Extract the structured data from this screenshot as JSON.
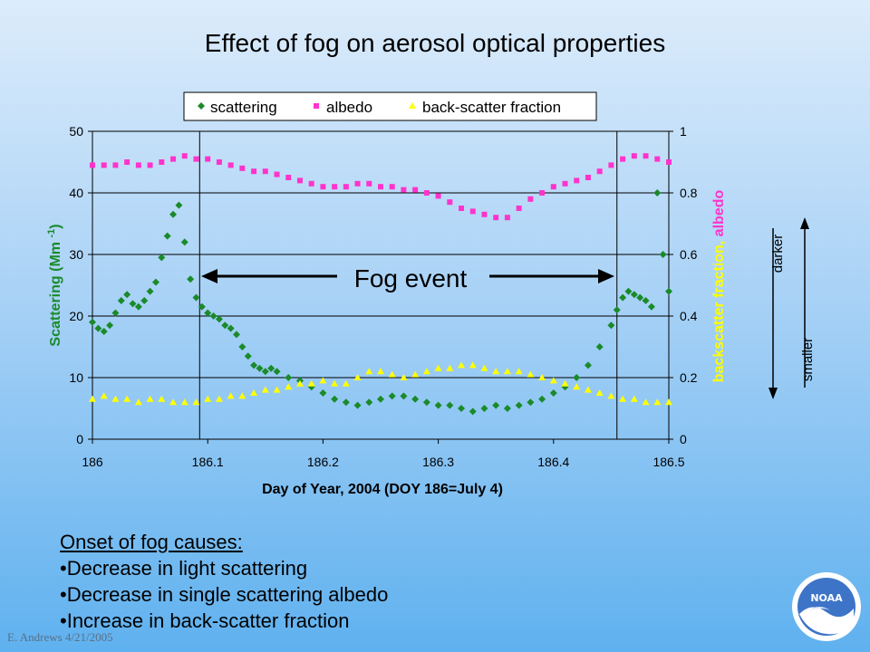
{
  "title": "Effect of fog on aerosol optical properties",
  "legend": {
    "items": [
      {
        "label": "scattering",
        "marker": "diamond",
        "color": "#1a8a2a"
      },
      {
        "label": "albedo",
        "marker": "square",
        "color": "#ff33cc"
      },
      {
        "label": "back-scatter fraction",
        "marker": "triangle",
        "color": "#ffff00"
      }
    ]
  },
  "annotations": {
    "fog_event": "Fog event",
    "darker": "darker",
    "smaller": "smaller"
  },
  "bullets": {
    "heading": "Onset of fog causes:",
    "items": [
      "•Decrease in light scattering",
      "•Decrease in single scattering albedo",
      "•Increase in back-scatter fraction"
    ]
  },
  "credit": "E. Andrews  4/21/2005",
  "logo_text": "NOAA",
  "colors": {
    "scattering": "#1a8a2a",
    "albedo": "#ff33cc",
    "backscatter": "#ffff00",
    "ylabel_right_backscatter": "#ffff00",
    "ylabel_right_albedo": "#ff33cc",
    "ylabel_left": "#1a8a2a"
  },
  "chart_data": {
    "type": "scatter",
    "title": "Effect of fog on aerosol optical properties",
    "xlabel": "Day of Year, 2004 (DOY 186=July 4)",
    "ylabel_left": "Scattering (Mm -1)",
    "ylabel_right_parts": [
      "backscatter fraction, ",
      "albedo"
    ],
    "xlim": [
      186,
      186.5
    ],
    "ylim_left": [
      0,
      50
    ],
    "ylim_right": [
      0,
      1
    ],
    "xticks": [
      "186",
      "186.1",
      "186.2",
      "186.3",
      "186.4",
      "186.5"
    ],
    "yticks_left": [
      "0",
      "10",
      "20",
      "30",
      "40",
      "50"
    ],
    "yticks_right": [
      "0",
      "0.2",
      "0.4",
      "0.6",
      "0.8",
      "1"
    ],
    "grid": "horizontal",
    "legend_position": "top",
    "fog_event_bounds": [
      186.093,
      186.455
    ],
    "series": [
      {
        "name": "scattering",
        "axis": "left",
        "x": [
          186.0,
          186.005,
          186.01,
          186.015,
          186.02,
          186.025,
          186.03,
          186.035,
          186.04,
          186.045,
          186.05,
          186.055,
          186.06,
          186.065,
          186.07,
          186.075,
          186.08,
          186.085,
          186.09,
          186.095,
          186.1,
          186.105,
          186.11,
          186.115,
          186.12,
          186.125,
          186.13,
          186.135,
          186.14,
          186.145,
          186.15,
          186.155,
          186.16,
          186.17,
          186.18,
          186.19,
          186.2,
          186.21,
          186.22,
          186.23,
          186.24,
          186.25,
          186.26,
          186.27,
          186.28,
          186.29,
          186.3,
          186.31,
          186.32,
          186.33,
          186.34,
          186.35,
          186.36,
          186.37,
          186.38,
          186.39,
          186.4,
          186.41,
          186.42,
          186.43,
          186.44,
          186.45,
          186.455,
          186.46,
          186.465,
          186.47,
          186.475,
          186.48,
          186.485,
          186.49,
          186.495,
          186.5
        ],
        "y": [
          19.0,
          18.0,
          17.5,
          18.5,
          20.5,
          22.5,
          23.5,
          22.0,
          21.5,
          22.5,
          24.0,
          25.5,
          29.5,
          33.0,
          36.5,
          38.0,
          32.0,
          26.0,
          23.0,
          21.5,
          20.5,
          20.0,
          19.5,
          18.5,
          18.0,
          17.0,
          15.0,
          13.5,
          12.0,
          11.5,
          11.0,
          11.5,
          11.0,
          10.0,
          9.5,
          8.5,
          7.5,
          6.5,
          6.0,
          5.5,
          6.0,
          6.5,
          7.0,
          7.0,
          6.5,
          6.0,
          5.5,
          5.5,
          5.0,
          4.5,
          5.0,
          5.5,
          5.0,
          5.5,
          6.0,
          6.5,
          7.5,
          8.5,
          10.0,
          12.0,
          15.0,
          18.5,
          21.0,
          23.0,
          24.0,
          23.5,
          23.0,
          22.5,
          21.5,
          40.0,
          30.0,
          24.0
        ]
      },
      {
        "name": "albedo",
        "axis": "right",
        "x": [
          186.0,
          186.01,
          186.02,
          186.03,
          186.04,
          186.05,
          186.06,
          186.07,
          186.08,
          186.09,
          186.1,
          186.11,
          186.12,
          186.13,
          186.14,
          186.15,
          186.16,
          186.17,
          186.18,
          186.19,
          186.2,
          186.21,
          186.22,
          186.23,
          186.24,
          186.25,
          186.26,
          186.27,
          186.28,
          186.29,
          186.3,
          186.31,
          186.32,
          186.33,
          186.34,
          186.35,
          186.36,
          186.37,
          186.38,
          186.39,
          186.4,
          186.41,
          186.42,
          186.43,
          186.44,
          186.45,
          186.46,
          186.47,
          186.48,
          186.49,
          186.5
        ],
        "y": [
          0.89,
          0.89,
          0.89,
          0.9,
          0.89,
          0.89,
          0.9,
          0.91,
          0.92,
          0.91,
          0.91,
          0.9,
          0.89,
          0.88,
          0.87,
          0.87,
          0.86,
          0.85,
          0.84,
          0.83,
          0.82,
          0.82,
          0.82,
          0.83,
          0.83,
          0.82,
          0.82,
          0.81,
          0.81,
          0.8,
          0.79,
          0.77,
          0.75,
          0.74,
          0.73,
          0.72,
          0.72,
          0.75,
          0.78,
          0.8,
          0.82,
          0.83,
          0.84,
          0.85,
          0.87,
          0.89,
          0.91,
          0.92,
          0.92,
          0.91,
          0.9
        ]
      },
      {
        "name": "back-scatter fraction",
        "axis": "right",
        "x": [
          186.0,
          186.01,
          186.02,
          186.03,
          186.04,
          186.05,
          186.06,
          186.07,
          186.08,
          186.09,
          186.1,
          186.11,
          186.12,
          186.13,
          186.14,
          186.15,
          186.16,
          186.17,
          186.18,
          186.19,
          186.2,
          186.21,
          186.22,
          186.23,
          186.24,
          186.25,
          186.26,
          186.27,
          186.28,
          186.29,
          186.3,
          186.31,
          186.32,
          186.33,
          186.34,
          186.35,
          186.36,
          186.37,
          186.38,
          186.39,
          186.4,
          186.41,
          186.42,
          186.43,
          186.44,
          186.45,
          186.46,
          186.47,
          186.48,
          186.49,
          186.5
        ],
        "y": [
          0.13,
          0.14,
          0.13,
          0.13,
          0.12,
          0.13,
          0.13,
          0.12,
          0.12,
          0.12,
          0.13,
          0.13,
          0.14,
          0.14,
          0.15,
          0.16,
          0.16,
          0.17,
          0.18,
          0.18,
          0.19,
          0.18,
          0.18,
          0.2,
          0.22,
          0.22,
          0.21,
          0.2,
          0.21,
          0.22,
          0.23,
          0.23,
          0.24,
          0.24,
          0.23,
          0.22,
          0.22,
          0.22,
          0.21,
          0.2,
          0.19,
          0.18,
          0.17,
          0.16,
          0.15,
          0.14,
          0.13,
          0.13,
          0.12,
          0.12,
          0.12
        ]
      }
    ]
  }
}
